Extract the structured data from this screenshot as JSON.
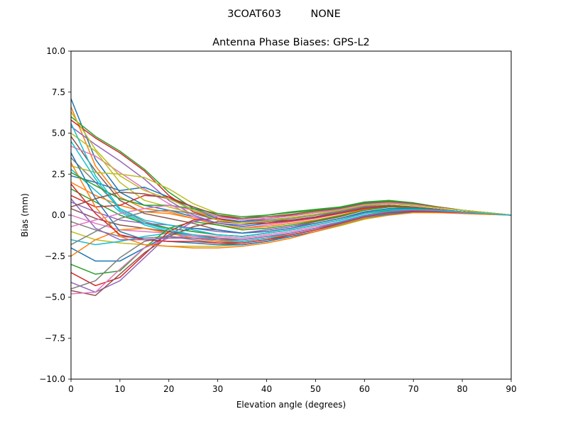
{
  "chart_data": {
    "type": "line",
    "suptitle": "3COAT603         NONE",
    "title": "Antenna Phase Biases: GPS-L2",
    "xlabel": "Elevation angle (degrees)",
    "ylabel": "Bias (mm)",
    "xlim": [
      0,
      90
    ],
    "ylim": [
      -10,
      10
    ],
    "xticks": [
      0,
      10,
      20,
      30,
      40,
      50,
      60,
      70,
      80,
      90
    ],
    "xtick_labels": [
      "0",
      "10",
      "20",
      "30",
      "40",
      "50",
      "60",
      "70",
      "80",
      "90"
    ],
    "yticks": [
      -10,
      -7.5,
      -5,
      -2.5,
      0,
      2.5,
      5,
      7.5,
      10
    ],
    "ytick_labels": [
      "−10.0",
      "−7.5",
      "−5.0",
      "−2.5",
      "0.0",
      "2.5",
      "5.0",
      "7.5",
      "10.0"
    ],
    "grid": false,
    "legend": "none",
    "x": [
      0,
      5,
      10,
      15,
      20,
      25,
      30,
      35,
      40,
      45,
      50,
      55,
      60,
      65,
      70,
      75,
      80,
      85,
      90
    ],
    "colors": [
      "#1f77b4",
      "#ff7f0e",
      "#2ca02c",
      "#d62728",
      "#9467bd",
      "#8c564b",
      "#e377c2",
      "#7f7f7f",
      "#bcbd22",
      "#17becf"
    ],
    "series": [
      {
        "values": [
          7.1,
          3.4,
          1.4,
          0.6,
          0.3,
          -0.1,
          -0.5,
          -0.7,
          -0.5,
          -0.3,
          -0.1,
          0.2,
          0.5,
          0.6,
          0.5,
          0.35,
          0.2,
          0.1,
          0
        ]
      },
      {
        "values": [
          6.6,
          3.0,
          1.1,
          0.4,
          0.2,
          -0.2,
          -0.6,
          -0.8,
          -0.6,
          -0.4,
          -0.2,
          0.1,
          0.4,
          0.5,
          0.45,
          0.3,
          0.2,
          0.1,
          0
        ]
      },
      {
        "values": [
          6.0,
          4.8,
          3.9,
          2.8,
          1.4,
          0.4,
          -0.1,
          -0.2,
          0.0,
          0.2,
          0.35,
          0.5,
          0.8,
          0.9,
          0.75,
          0.5,
          0.3,
          0.15,
          0
        ]
      },
      {
        "values": [
          5.8,
          4.7,
          3.8,
          2.7,
          1.2,
          0.2,
          -0.3,
          -0.4,
          -0.2,
          0.0,
          0.2,
          0.4,
          0.7,
          0.85,
          0.7,
          0.5,
          0.3,
          0.15,
          0
        ]
      },
      {
        "values": [
          5.4,
          4.3,
          3.3,
          2.2,
          0.9,
          0.0,
          -0.5,
          -0.6,
          -0.4,
          -0.2,
          0.0,
          0.3,
          0.6,
          0.75,
          0.65,
          0.45,
          0.3,
          0.15,
          0
        ]
      },
      {
        "values": [
          4.8,
          2.7,
          0.9,
          0.1,
          -0.2,
          -0.5,
          -0.9,
          -1.1,
          -0.9,
          -0.7,
          -0.4,
          -0.1,
          0.3,
          0.5,
          0.45,
          0.3,
          0.2,
          0.1,
          0
        ]
      },
      {
        "values": [
          4.2,
          3.6,
          2.6,
          1.6,
          0.7,
          -0.1,
          -0.6,
          -0.8,
          -0.6,
          -0.4,
          -0.2,
          0.1,
          0.45,
          0.6,
          0.5,
          0.35,
          0.2,
          0.1,
          0
        ]
      },
      {
        "values": [
          3.5,
          2.0,
          0.4,
          -0.4,
          -0.8,
          -1.0,
          -1.2,
          -1.3,
          -1.1,
          -0.9,
          -0.6,
          -0.3,
          0.1,
          0.35,
          0.4,
          0.3,
          0.2,
          0.1,
          0
        ]
      },
      {
        "values": [
          3.0,
          2.6,
          2.5,
          2.3,
          1.6,
          0.7,
          0.1,
          -0.2,
          -0.1,
          0.05,
          0.2,
          0.4,
          0.7,
          0.8,
          0.7,
          0.5,
          0.3,
          0.15,
          0
        ]
      },
      {
        "values": [
          2.8,
          1.5,
          0.2,
          -0.6,
          -1.0,
          -1.3,
          -1.5,
          -1.6,
          -1.4,
          -1.1,
          -0.8,
          -0.4,
          0.0,
          0.25,
          0.3,
          0.25,
          0.15,
          0.1,
          0
        ]
      },
      {
        "values": [
          2.4,
          2.0,
          1.5,
          1.7,
          1.1,
          0.3,
          -0.2,
          -0.4,
          -0.3,
          -0.15,
          0.05,
          0.3,
          0.6,
          0.7,
          0.6,
          0.45,
          0.3,
          0.15,
          0
        ]
      },
      {
        "values": [
          2.0,
          1.2,
          0.6,
          0.2,
          0.1,
          -0.2,
          -0.6,
          -0.8,
          -0.7,
          -0.5,
          -0.3,
          0.0,
          0.35,
          0.5,
          0.45,
          0.3,
          0.2,
          0.1,
          0
        ]
      },
      {
        "values": [
          1.6,
          0.8,
          0.0,
          -0.5,
          -0.8,
          -1.0,
          -1.2,
          -1.3,
          -1.1,
          -0.9,
          -0.6,
          -0.3,
          0.1,
          0.3,
          0.35,
          0.25,
          0.15,
          0.1,
          0
        ]
      },
      {
        "values": [
          1.2,
          0.5,
          0.6,
          1.2,
          1.1,
          0.5,
          0.0,
          -0.3,
          -0.2,
          -0.05,
          0.15,
          0.35,
          0.6,
          0.7,
          0.6,
          0.45,
          0.3,
          0.15,
          0
        ]
      },
      {
        "values": [
          0.8,
          0.2,
          -0.3,
          -0.5,
          -0.6,
          -0.8,
          -1.0,
          -1.1,
          -0.9,
          -0.7,
          -0.5,
          -0.2,
          0.15,
          0.4,
          0.4,
          0.3,
          0.2,
          0.1,
          0
        ]
      },
      {
        "values": [
          0.4,
          -0.2,
          -0.6,
          -0.8,
          -1.0,
          -1.2,
          -1.4,
          -1.5,
          -1.3,
          -1.1,
          -0.8,
          -0.5,
          -0.1,
          0.15,
          0.25,
          0.2,
          0.15,
          0.1,
          0
        ]
      },
      {
        "values": [
          0.0,
          -0.5,
          -0.9,
          -1.0,
          -1.1,
          -1.3,
          -1.5,
          -1.6,
          -1.4,
          -1.2,
          -0.9,
          -0.55,
          -0.15,
          0.1,
          0.2,
          0.2,
          0.15,
          0.1,
          0
        ]
      },
      {
        "values": [
          -0.4,
          -0.9,
          -1.3,
          -1.4,
          -1.3,
          -1.4,
          -1.6,
          -1.7,
          -1.5,
          -1.3,
          -1.0,
          -0.6,
          -0.2,
          0.05,
          0.2,
          0.2,
          0.15,
          0.1,
          0
        ]
      },
      {
        "values": [
          -1.0,
          -1.5,
          -1.7,
          -1.8,
          -1.9,
          -1.9,
          -1.9,
          -1.8,
          -1.6,
          -1.3,
          -1.0,
          -0.65,
          -0.25,
          0.0,
          0.15,
          0.15,
          0.1,
          0.05,
          0
        ]
      },
      {
        "values": [
          -1.5,
          -1.8,
          -1.6,
          -1.3,
          -1.1,
          -1.2,
          -1.5,
          -1.6,
          -1.4,
          -1.2,
          -0.9,
          -0.55,
          -0.15,
          0.1,
          0.2,
          0.2,
          0.15,
          0.1,
          0
        ]
      },
      {
        "values": [
          -2.0,
          -2.8,
          -2.8,
          -2.0,
          -1.2,
          -0.8,
          -0.9,
          -1.1,
          -1.0,
          -0.8,
          -0.5,
          -0.2,
          0.2,
          0.4,
          0.4,
          0.3,
          0.2,
          0.1,
          0
        ]
      },
      {
        "values": [
          -2.5,
          -1.5,
          -0.9,
          -0.8,
          -1.1,
          -1.4,
          -1.6,
          -1.6,
          -1.4,
          -1.2,
          -0.9,
          -0.5,
          -0.1,
          0.15,
          0.25,
          0.2,
          0.15,
          0.1,
          0
        ]
      },
      {
        "values": [
          -3.0,
          -3.6,
          -3.4,
          -2.0,
          -0.8,
          -0.4,
          -0.6,
          -0.9,
          -0.8,
          -0.6,
          -0.35,
          -0.05,
          0.3,
          0.5,
          0.45,
          0.35,
          0.2,
          0.1,
          0
        ]
      },
      {
        "values": [
          -3.5,
          -4.3,
          -3.8,
          -2.4,
          -1.0,
          -0.3,
          -0.2,
          -0.5,
          -0.5,
          -0.35,
          -0.15,
          0.1,
          0.4,
          0.55,
          0.5,
          0.35,
          0.2,
          0.1,
          0
        ]
      },
      {
        "values": [
          -4.1,
          -4.7,
          -4.0,
          -2.6,
          -1.2,
          -0.4,
          -0.1,
          -0.3,
          -0.3,
          -0.2,
          0.0,
          0.2,
          0.5,
          0.6,
          0.5,
          0.35,
          0.2,
          0.1,
          0
        ]
      },
      {
        "values": [
          -4.6,
          -4.9,
          -3.6,
          -2.3,
          -1.3,
          -0.7,
          -0.4,
          -0.5,
          -0.4,
          -0.3,
          -0.1,
          0.15,
          0.45,
          0.6,
          0.5,
          0.35,
          0.2,
          0.1,
          0
        ]
      },
      {
        "values": [
          -4.8,
          -4.7,
          -3.3,
          -2.0,
          -1.4,
          -1.2,
          -1.3,
          -1.4,
          -1.2,
          -1.0,
          -0.7,
          -0.4,
          0.0,
          0.25,
          0.3,
          0.25,
          0.15,
          0.1,
          0
        ]
      },
      {
        "values": [
          -4.5,
          -4.0,
          -2.6,
          -1.6,
          -1.3,
          -1.5,
          -1.7,
          -1.8,
          -1.6,
          -1.3,
          -1.0,
          -0.6,
          -0.2,
          0.05,
          0.2,
          0.2,
          0.15,
          0.1,
          0
        ]
      },
      {
        "values": [
          5.0,
          3.9,
          2.0,
          0.9,
          0.5,
          0.1,
          -0.3,
          -0.5,
          -0.35,
          -0.15,
          0.05,
          0.3,
          0.6,
          0.7,
          0.6,
          0.45,
          0.3,
          0.15,
          0
        ]
      },
      {
        "values": [
          4.5,
          2.2,
          0.3,
          -0.5,
          -0.9,
          -1.2,
          -1.5,
          -1.6,
          -1.4,
          -1.1,
          -0.8,
          -0.4,
          0.0,
          0.25,
          0.3,
          0.25,
          0.15,
          0.1,
          0
        ]
      },
      {
        "values": [
          3.8,
          1.0,
          -1.0,
          -1.5,
          -1.6,
          -1.7,
          -1.8,
          -1.8,
          -1.6,
          -1.3,
          -1.0,
          -0.6,
          -0.2,
          0.05,
          0.2,
          0.2,
          0.15,
          0.1,
          0
        ]
      },
      {
        "values": [
          3.2,
          0.5,
          -1.3,
          -1.8,
          -1.9,
          -2.0,
          -2.0,
          -1.9,
          -1.7,
          -1.4,
          -1.0,
          -0.6,
          -0.2,
          0.0,
          0.15,
          0.15,
          0.1,
          0.05,
          0
        ]
      },
      {
        "values": [
          2.6,
          1.8,
          1.0,
          0.6,
          0.6,
          0.4,
          0.1,
          -0.1,
          0.0,
          0.15,
          0.3,
          0.45,
          0.75,
          0.85,
          0.75,
          0.5,
          0.3,
          0.15,
          0
        ]
      },
      {
        "values": [
          1.9,
          0.1,
          -1.2,
          -1.5,
          -1.6,
          -1.6,
          -1.7,
          -1.7,
          -1.5,
          -1.2,
          -0.9,
          -0.5,
          -0.1,
          0.15,
          0.25,
          0.2,
          0.15,
          0.1,
          0
        ]
      },
      {
        "values": [
          1.0,
          -0.8,
          -1.5,
          -1.5,
          -1.4,
          -1.4,
          -1.5,
          -1.5,
          -1.3,
          -1.1,
          -0.8,
          -0.45,
          -0.05,
          0.2,
          0.3,
          0.25,
          0.15,
          0.1,
          0
        ]
      },
      {
        "values": [
          0.5,
          1.0,
          1.4,
          1.3,
          1.0,
          0.5,
          0.0,
          -0.2,
          -0.1,
          0.05,
          0.25,
          0.4,
          0.7,
          0.8,
          0.7,
          0.5,
          0.3,
          0.15,
          0
        ]
      },
      {
        "values": [
          -0.7,
          -0.3,
          0.1,
          0.4,
          0.6,
          0.3,
          -0.1,
          -0.3,
          -0.2,
          -0.05,
          0.15,
          0.35,
          0.65,
          0.75,
          0.65,
          0.45,
          0.3,
          0.15,
          0
        ]
      },
      {
        "values": [
          -1.8,
          -1.0,
          -0.2,
          0.2,
          0.3,
          0.1,
          -0.3,
          -0.5,
          -0.4,
          -0.2,
          0.0,
          0.25,
          0.55,
          0.7,
          0.6,
          0.45,
          0.3,
          0.15,
          0
        ]
      },
      {
        "values": [
          6.3,
          4.0,
          2.4,
          1.5,
          1.0,
          0.3,
          -0.3,
          -0.5,
          -0.35,
          -0.15,
          0.05,
          0.3,
          0.6,
          0.7,
          0.6,
          0.45,
          0.3,
          0.15,
          0
        ]
      },
      {
        "values": [
          5.6,
          2.4,
          0.4,
          -0.3,
          -0.6,
          -0.9,
          -1.2,
          -1.3,
          -1.1,
          -0.9,
          -0.6,
          -0.3,
          0.1,
          0.35,
          0.35,
          0.3,
          0.2,
          0.1,
          0
        ]
      }
    ]
  }
}
